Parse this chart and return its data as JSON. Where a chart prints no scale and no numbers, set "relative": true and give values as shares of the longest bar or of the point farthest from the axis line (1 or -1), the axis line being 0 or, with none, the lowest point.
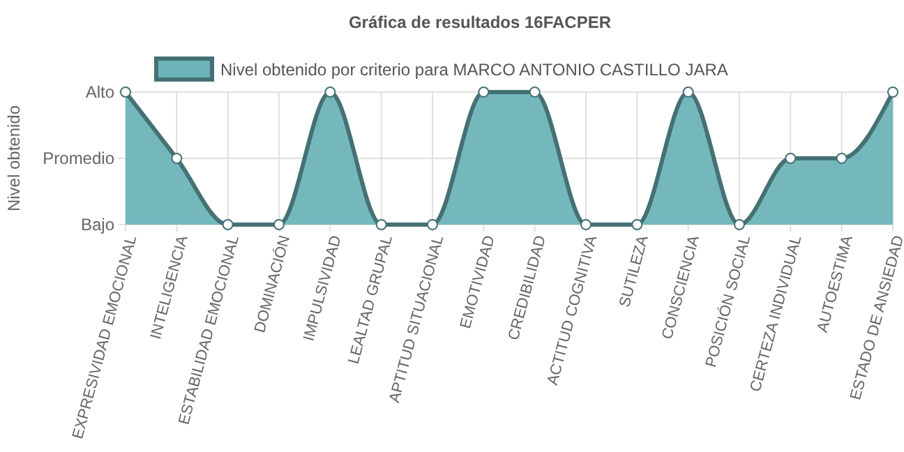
{
  "chart_data": {
    "type": "area",
    "title": "Gráfica de resultados 16FACPER",
    "ylabel": "Nivel obtenido",
    "categories": [
      "EXPRESIVIDAD EMOCIONAL",
      "INTELIGENCIA",
      "ESTABILIDAD EMOCIONAL",
      "DOMINACIÓN",
      "IMPULSIVIDAD",
      "LEALTAD GRUPAL",
      "APTITUD SITUACIONAL",
      "EMOTIVIDAD",
      "CREDIBILIDAD",
      "ACTITUD COGNITIVA",
      "SUTILEZA",
      "CONSCIENCIA",
      "POSICIÓN SOCIAL",
      "CERTEZA INDIVIDUAL",
      "AUTOESTIMA",
      "ESTADO DE ANSIEDAD"
    ],
    "series": [
      {
        "name": "Nivel obtenido por criterio para MARCO ANTONIO CASTILLO JARA",
        "color": "#6db4b8",
        "values": [
          1,
          0.5,
          0,
          0,
          1,
          0,
          0,
          1,
          1,
          0,
          0,
          1,
          0,
          0.5,
          0.5,
          1
        ]
      }
    ],
    "relative": true,
    "y_categories": [
      "Alto",
      "Promedio",
      "Bajo"
    ],
    "grid": true,
    "legend": "top",
    "marker": "circle"
  }
}
